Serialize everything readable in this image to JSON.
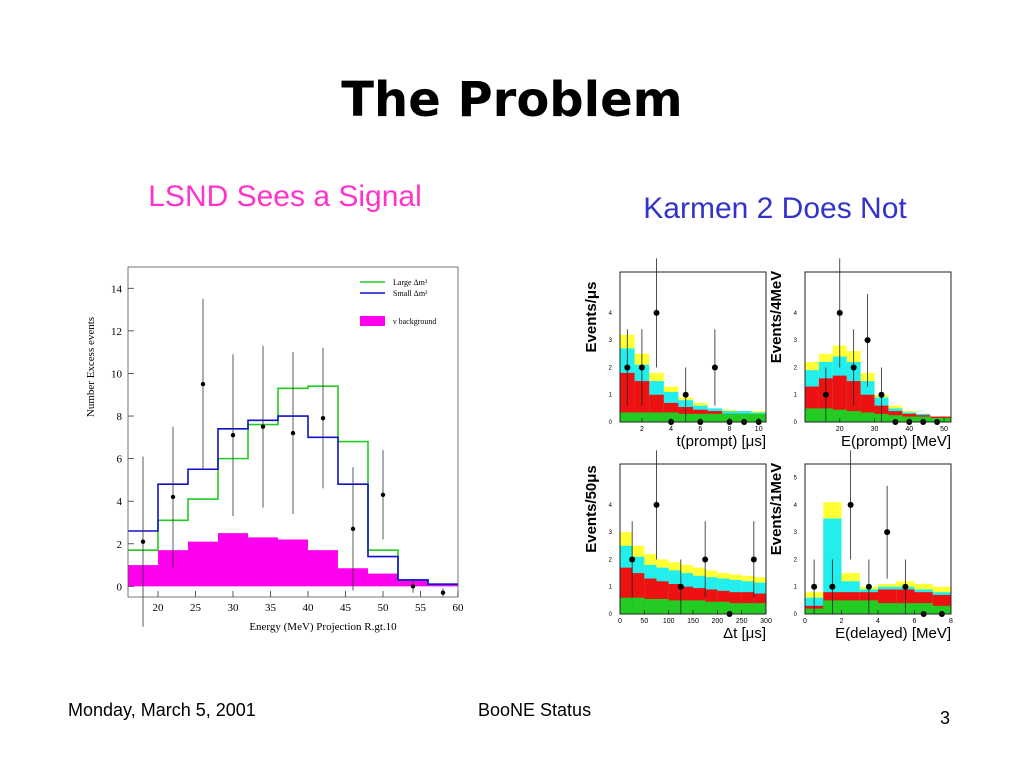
{
  "slide": {
    "title": "The Problem",
    "left_heading": "LSND Sees a Signal",
    "right_heading": "Karmen 2 Does Not",
    "footer_date": "Monday, March 5, 2001",
    "footer_center": "BooNE Status",
    "page_number": "3"
  },
  "colors": {
    "green": "#22cc22",
    "blue": "#1111cc",
    "magenta": "#ff00ee",
    "yellow": "#ffff33",
    "cyan": "#22eeee",
    "red": "#ee1111"
  },
  "chart_data": [
    {
      "id": "lsnd",
      "type": "histogram",
      "xlabel": "Energy (MeV) Projection R.gt.10",
      "ylabel": "Number Excess events",
      "xlim": [
        16,
        60
      ],
      "ylim": [
        -0.5,
        15
      ],
      "xticks": [
        20,
        25,
        30,
        35,
        40,
        45,
        50,
        55,
        60
      ],
      "yticks": [
        0,
        2,
        4,
        6,
        8,
        10,
        12,
        14
      ],
      "bin_edges": [
        16,
        20,
        24,
        28,
        32,
        36,
        40,
        44,
        48,
        52,
        56,
        60
      ],
      "series": [
        {
          "name": "Large Δm²",
          "values": [
            1.7,
            3.1,
            4.1,
            6.0,
            7.6,
            9.3,
            9.4,
            6.8,
            1.7,
            0.3,
            0.1
          ]
        },
        {
          "name": "Small Δm²",
          "values": [
            2.6,
            4.8,
            5.5,
            7.4,
            7.8,
            8.0,
            7.0,
            4.8,
            1.4,
            0.3,
            0.1
          ]
        },
        {
          "name": "ν background",
          "values": [
            1.0,
            1.7,
            2.1,
            2.5,
            2.3,
            2.2,
            1.7,
            0.85,
            0.6,
            0.3,
            0.1
          ]
        }
      ],
      "points": [
        {
          "x": 18,
          "y": 2.1,
          "err": 4.0
        },
        {
          "x": 22,
          "y": 4.2,
          "err": 3.3
        },
        {
          "x": 26,
          "y": 9.5,
          "err": 4.0
        },
        {
          "x": 30,
          "y": 7.1,
          "err": 3.8
        },
        {
          "x": 34,
          "y": 7.5,
          "err": 3.8
        },
        {
          "x": 38,
          "y": 7.2,
          "err": 3.8
        },
        {
          "x": 42,
          "y": 7.9,
          "err": 3.3
        },
        {
          "x": 46,
          "y": 2.7,
          "err": 2.9
        },
        {
          "x": 50,
          "y": 4.3,
          "err": 2.1
        },
        {
          "x": 54,
          "y": 0.0,
          "err": 0.3
        },
        {
          "x": 58,
          "y": -0.3,
          "err": 0.2
        }
      ],
      "legend": "top-right"
    },
    {
      "id": "karmen-tprompt",
      "type": "histogram",
      "ylabel": "Events/μs",
      "xlabel": "t(prompt) [μs]",
      "xlim": [
        0.5,
        10.5
      ],
      "ylim": [
        0,
        5.5
      ],
      "xticks": [
        2,
        4,
        6,
        8,
        10
      ],
      "yticks": [
        0,
        1,
        2,
        3,
        4
      ],
      "bin_edges": [
        0.5,
        1.5,
        2.5,
        3.5,
        4.5,
        5.5,
        6.5,
        7.5,
        8.5,
        9.5,
        10.5
      ],
      "layers": [
        {
          "name": "yellow",
          "values": [
            3.2,
            2.5,
            1.8,
            1.3,
            0.9,
            0.7,
            0.5,
            0.45,
            0.4,
            0.4
          ]
        },
        {
          "name": "cyan",
          "values": [
            2.7,
            2.1,
            1.5,
            1.1,
            0.8,
            0.6,
            0.5,
            0.4,
            0.4,
            0.35
          ]
        },
        {
          "name": "red",
          "values": [
            1.8,
            1.5,
            1.0,
            0.7,
            0.55,
            0.45,
            0.4,
            0.3,
            0.3,
            0.25
          ]
        },
        {
          "name": "green",
          "values": [
            0.35,
            0.35,
            0.35,
            0.35,
            0.3,
            0.3,
            0.3,
            0.3,
            0.3,
            0.3
          ]
        }
      ],
      "points": [
        {
          "x": 1,
          "y": 2,
          "err": 1.4
        },
        {
          "x": 2,
          "y": 2,
          "err": 1.4
        },
        {
          "x": 3,
          "y": 4,
          "err": 2.0
        },
        {
          "x": 4,
          "y": 0,
          "err": 0
        },
        {
          "x": 5,
          "y": 1,
          "err": 1.0
        },
        {
          "x": 6,
          "y": 0,
          "err": 0
        },
        {
          "x": 7,
          "y": 2,
          "err": 1.4
        },
        {
          "x": 8,
          "y": 0,
          "err": 0
        },
        {
          "x": 9,
          "y": 0,
          "err": 0
        },
        {
          "x": 10,
          "y": 0,
          "err": 0
        }
      ]
    },
    {
      "id": "karmen-eprompt",
      "type": "histogram",
      "ylabel": "Events/4MeV",
      "xlabel": "E(prompt) [MeV]",
      "xlim": [
        10,
        52
      ],
      "ylim": [
        0,
        5.5
      ],
      "xticks": [
        20,
        30,
        40,
        50
      ],
      "yticks": [
        0,
        1,
        2,
        3,
        4
      ],
      "bin_edges": [
        10,
        14,
        18,
        22,
        26,
        30,
        34,
        38,
        42,
        46,
        50,
        52
      ],
      "layers": [
        {
          "name": "yellow",
          "values": [
            2.2,
            2.5,
            2.8,
            2.6,
            1.8,
            1.0,
            0.6,
            0.4,
            0.3,
            0.2,
            0.2
          ]
        },
        {
          "name": "cyan",
          "values": [
            1.9,
            2.2,
            2.4,
            2.2,
            1.5,
            0.9,
            0.5,
            0.35,
            0.3,
            0.2,
            0.2
          ]
        },
        {
          "name": "red",
          "values": [
            1.3,
            1.6,
            1.7,
            1.5,
            1.0,
            0.6,
            0.4,
            0.3,
            0.25,
            0.2,
            0.2
          ]
        },
        {
          "name": "green",
          "values": [
            0.5,
            0.5,
            0.45,
            0.4,
            0.35,
            0.3,
            0.25,
            0.2,
            0.2,
            0.15,
            0.15
          ]
        }
      ],
      "points": [
        {
          "x": 16,
          "y": 1,
          "err": 1.0
        },
        {
          "x": 20,
          "y": 4,
          "err": 2.0
        },
        {
          "x": 24,
          "y": 2,
          "err": 1.4
        },
        {
          "x": 28,
          "y": 3,
          "err": 1.7
        },
        {
          "x": 32,
          "y": 1,
          "err": 1.0
        },
        {
          "x": 36,
          "y": 0,
          "err": 0
        },
        {
          "x": 40,
          "y": 0,
          "err": 0
        },
        {
          "x": 44,
          "y": 0,
          "err": 0
        },
        {
          "x": 48,
          "y": 0,
          "err": 0
        }
      ]
    },
    {
      "id": "karmen-dt",
      "type": "histogram",
      "ylabel": "Events/50μs",
      "xlabel": "Δt [μs]",
      "xlim": [
        0,
        300
      ],
      "ylim": [
        0,
        5.5
      ],
      "xticks": [
        0,
        50,
        100,
        150,
        200,
        250,
        300
      ],
      "yticks": [
        0,
        1,
        2,
        3,
        4
      ],
      "bin_edges": [
        0,
        25,
        50,
        75,
        100,
        125,
        150,
        175,
        200,
        225,
        250,
        275,
        300
      ],
      "layers": [
        {
          "name": "yellow",
          "values": [
            3.0,
            2.5,
            2.2,
            2.0,
            1.9,
            1.8,
            1.7,
            1.6,
            1.5,
            1.45,
            1.4,
            1.35
          ]
        },
        {
          "name": "cyan",
          "values": [
            2.5,
            2.1,
            1.8,
            1.7,
            1.6,
            1.5,
            1.4,
            1.35,
            1.3,
            1.25,
            1.2,
            1.15
          ]
        },
        {
          "name": "red",
          "values": [
            1.7,
            1.5,
            1.3,
            1.2,
            1.1,
            1.0,
            0.95,
            0.9,
            0.85,
            0.8,
            0.8,
            0.75
          ]
        },
        {
          "name": "green",
          "values": [
            0.6,
            0.6,
            0.55,
            0.55,
            0.5,
            0.5,
            0.5,
            0.45,
            0.45,
            0.4,
            0.4,
            0.4
          ]
        }
      ],
      "points": [
        {
          "x": 25,
          "y": 2,
          "err": 1.4
        },
        {
          "x": 75,
          "y": 4,
          "err": 2.0
        },
        {
          "x": 125,
          "y": 1,
          "err": 1.0
        },
        {
          "x": 175,
          "y": 2,
          "err": 1.4
        },
        {
          "x": 225,
          "y": 0,
          "err": 0
        },
        {
          "x": 275,
          "y": 2,
          "err": 1.4
        }
      ]
    },
    {
      "id": "karmen-edelayed",
      "type": "histogram",
      "ylabel": "Events/1MeV",
      "xlabel": "E(delayed) [MeV]",
      "xlim": [
        0,
        8
      ],
      "ylim": [
        0,
        5.5
      ],
      "xticks": [
        0,
        2,
        4,
        6,
        8
      ],
      "yticks": [
        0,
        1,
        2,
        3,
        4,
        5,
        6
      ],
      "bin_edges": [
        0,
        1,
        2,
        3,
        4,
        5,
        6,
        7,
        8
      ],
      "layers": [
        {
          "name": "yellow",
          "values": [
            0.8,
            4.1,
            1.5,
            1.0,
            1.1,
            1.2,
            1.1,
            1.0
          ]
        },
        {
          "name": "cyan",
          "values": [
            0.6,
            3.5,
            1.2,
            0.9,
            1.0,
            1.0,
            0.9,
            0.8
          ]
        },
        {
          "name": "red",
          "values": [
            0.3,
            0.8,
            0.8,
            0.8,
            0.9,
            0.9,
            0.8,
            0.7
          ]
        },
        {
          "name": "green",
          "values": [
            0.2,
            0.5,
            0.5,
            0.5,
            0.4,
            0.4,
            0.4,
            0.3
          ]
        }
      ],
      "points": [
        {
          "x": 0.5,
          "y": 1,
          "err": 1.0
        },
        {
          "x": 1.5,
          "y": 1,
          "err": 1.0
        },
        {
          "x": 2.5,
          "y": 4,
          "err": 2.0
        },
        {
          "x": 3.5,
          "y": 1,
          "err": 1.0
        },
        {
          "x": 4.5,
          "y": 3,
          "err": 1.7
        },
        {
          "x": 5.5,
          "y": 1,
          "err": 1.0
        },
        {
          "x": 6.5,
          "y": 0,
          "err": 0
        },
        {
          "x": 7.5,
          "y": 0,
          "err": 0
        }
      ]
    }
  ]
}
